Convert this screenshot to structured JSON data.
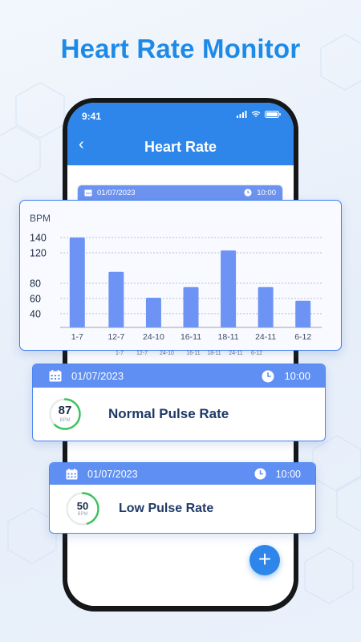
{
  "headline": "Heart Rate Monitor",
  "status_bar": {
    "time": "9:41"
  },
  "app_header": {
    "back": "‹",
    "title": "Heart Rate"
  },
  "background_card": {
    "date": "01/07/2023",
    "time": "10:00",
    "x_labels": [
      "1-7",
      "12-7",
      "24-10",
      "16-11",
      "18-11",
      "24-11",
      "6-12"
    ]
  },
  "chart_data": {
    "type": "bar",
    "ylabel": "BPM",
    "categories": [
      "1-7",
      "12-7",
      "24-10",
      "16-11",
      "18-11",
      "24-11",
      "6-12"
    ],
    "values": [
      140,
      95,
      61,
      75,
      123,
      75,
      57
    ],
    "yticks": [
      40,
      60,
      80,
      120,
      140
    ],
    "ylim": [
      22,
      140
    ],
    "color": "#6d93f4",
    "grid": true
  },
  "readings": [
    {
      "date": "01/07/2023",
      "time": "10:00",
      "value": "87",
      "unit": "BPM",
      "label": "Normal Pulse Rate",
      "ring_fraction": 0.62,
      "ring_color": "#39c25a"
    },
    {
      "date": "01/07/2023",
      "time": "10:00",
      "value": "50",
      "unit": "BPM",
      "label": "Low Pulse Rate",
      "ring_fraction": 0.45,
      "ring_color": "#39c25a"
    }
  ],
  "fab": {
    "label": "+"
  }
}
